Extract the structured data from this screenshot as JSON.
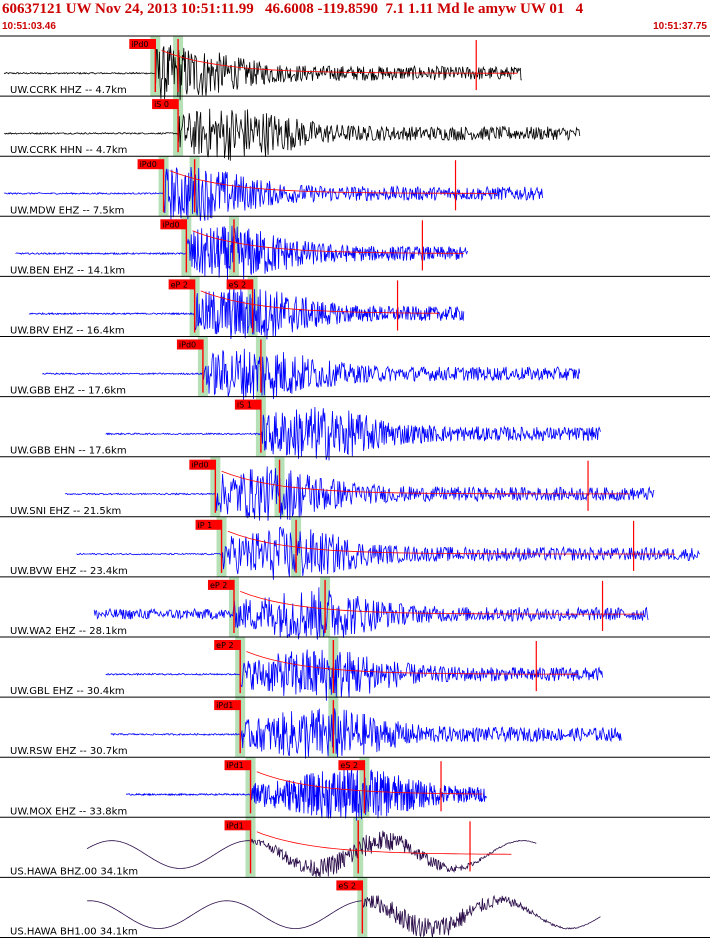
{
  "header": {
    "title": "60637121 UW Nov 24, 2013 10:51:11.99   46.6008 -119.8590  7.1 1.11 Md le amyw UW 01   4",
    "start_time": "10:51:03.46",
    "end_time": "10:51:37.75"
  },
  "colors": {
    "vertical_trace": "#0000ff",
    "other_trace": "#000000",
    "broadband_trace": "#2b0d4a",
    "pick_box": "#ff0000",
    "pick_window": "#b6e0b6",
    "coda_line": "#ff0000",
    "separator": "#000000"
  },
  "chart_data": {
    "type": "line",
    "title": "",
    "xlabel": "",
    "ylabel": "",
    "time_range": [
      "10:51:03.46",
      "10:51:37.75"
    ],
    "traces": [
      {
        "label": "UW.CCRK HHZ -- 4.7km",
        "color": "black",
        "picks": [
          {
            "label": "iPd0",
            "t": 7.5
          },
          {
            "label": "",
            "t": 8.6
          }
        ],
        "end_marker": 23.0
      },
      {
        "label": "UW.CCRK HHN -- 4.7km",
        "color": "black",
        "picks": [
          {
            "label": "iS 0",
            "t": 8.6
          }
        ]
      },
      {
        "label": "UW.MDW EHZ -- 7.5km",
        "color": "blue",
        "picks": [
          {
            "label": "iPd0",
            "t": 7.9
          },
          {
            "label": "",
            "t": 9.4
          }
        ],
        "end_marker": 22.0
      },
      {
        "label": "UW.BEN EHZ -- 14.1km",
        "color": "blue",
        "picks": [
          {
            "label": "iPd0",
            "t": 9.0
          },
          {
            "label": "",
            "t": 11.3
          }
        ],
        "end_marker": 20.4
      },
      {
        "label": "UW.BRV EHZ -- 16.4km",
        "color": "blue",
        "picks": [
          {
            "label": "eP 2",
            "t": 9.4
          },
          {
            "label": "eS 2",
            "t": 12.2
          }
        ],
        "end_marker": 19.2
      },
      {
        "label": "UW.GBB EHZ -- 17.6km",
        "color": "blue",
        "picks": [
          {
            "label": "iPd0",
            "t": 9.8
          },
          {
            "label": "",
            "t": 12.6
          }
        ]
      },
      {
        "label": "UW.GBB EHN -- 17.6km",
        "color": "blue",
        "picks": [
          {
            "label": "iS 1",
            "t": 12.6
          }
        ]
      },
      {
        "label": "UW.SNI EHZ -- 21.5km",
        "color": "blue",
        "picks": [
          {
            "label": "iPd0",
            "t": 10.4
          },
          {
            "label": "",
            "t": 13.5
          }
        ],
        "end_marker": 28.4
      },
      {
        "label": "UW.BVW EHZ -- 23.4km",
        "color": "blue",
        "picks": [
          {
            "label": "iP 1",
            "t": 10.7
          },
          {
            "label": "",
            "t": 14.3
          }
        ],
        "end_marker": 30.6
      },
      {
        "label": "UW.WA2 EHZ -- 28.1km",
        "color": "blue",
        "picks": [
          {
            "label": "eP 2",
            "t": 11.3
          },
          {
            "label": "",
            "t": 15.7
          }
        ],
        "end_marker": 29.1
      },
      {
        "label": "UW.GBL EHZ -- 30.4km",
        "color": "blue",
        "picks": [
          {
            "label": "eP 2",
            "t": 11.6
          },
          {
            "label": "",
            "t": 16.1
          }
        ],
        "end_marker": 25.9
      },
      {
        "label": "UW.RSW EHZ -- 30.7km",
        "color": "blue",
        "picks": [
          {
            "label": "iPd1",
            "t": 11.6
          },
          {
            "label": "",
            "t": 16.1
          }
        ]
      },
      {
        "label": "UW.MOX EHZ -- 33.8km",
        "color": "blue",
        "picks": [
          {
            "label": "iPd1",
            "t": 12.1
          },
          {
            "label": "eS 2",
            "t": 17.6
          }
        ],
        "end_marker": 21.3
      },
      {
        "label": "US.HAWA BHZ.00 34.1km",
        "color": "broadband",
        "picks": [
          {
            "label": "iPd1",
            "t": 12.1
          },
          {
            "label": "",
            "t": 17.3
          }
        ],
        "end_marker": 22.7
      },
      {
        "label": "US.HAWA BH1.00 34.1km",
        "color": "broadband",
        "picks": [
          {
            "label": "eS 2",
            "t": 17.5
          }
        ]
      }
    ]
  }
}
